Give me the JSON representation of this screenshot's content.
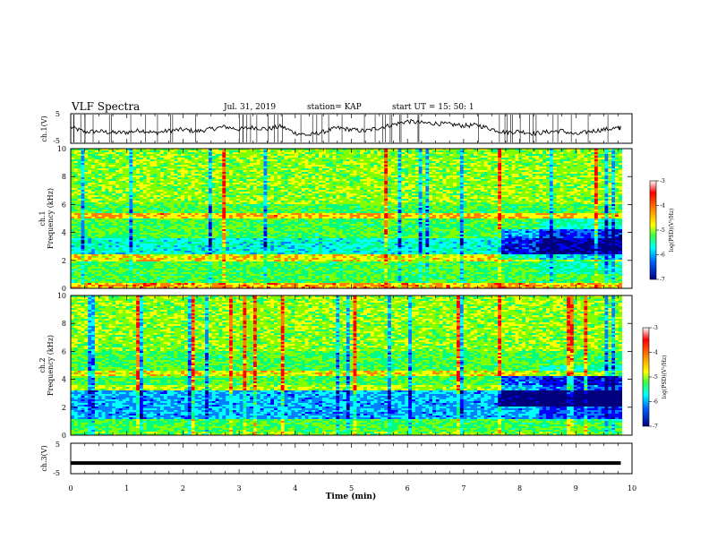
{
  "header": {
    "title": "VLF Spectra",
    "date": "Jul. 31, 2019",
    "station": "station= KAP",
    "start": "start  UT =  15: 50: 1"
  },
  "chart_data": [
    {
      "type": "line",
      "panel": "ch1-waveform",
      "ylabel": "ch.1(V)",
      "ylim": [
        -5,
        5
      ],
      "yticks": [
        "5",
        "-5"
      ],
      "xlim": [
        0,
        10
      ],
      "x": [
        0.0,
        0.25,
        0.5,
        0.75,
        1.0,
        1.25,
        1.5,
        1.75,
        2.0,
        2.25,
        2.5,
        2.75,
        3.0,
        3.25,
        3.5,
        3.75,
        4.0,
        4.25,
        4.5,
        4.75,
        5.0,
        5.25,
        5.5,
        5.75,
        6.0,
        6.25,
        6.5,
        6.75,
        7.0,
        7.25,
        7.5,
        7.75,
        8.0,
        8.25,
        8.5,
        8.75,
        9.0,
        9.25,
        9.5,
        9.75
      ],
      "values": [
        0.5,
        -1.2,
        -1.0,
        -1.5,
        -1.4,
        -0.6,
        -1.6,
        -0.8,
        -0.4,
        -1.0,
        -0.2,
        0.6,
        -0.3,
        0.4,
        -0.2,
        0.8,
        -1.6,
        -2.4,
        -1.2,
        0.2,
        -0.4,
        -0.9,
        0.3,
        1.4,
        2.6,
        2.0,
        1.8,
        1.5,
        1.0,
        1.2,
        -0.2,
        -1.4,
        -1.0,
        -1.8,
        -1.2,
        -0.8,
        -2.2,
        -1.0,
        -0.4,
        0.2
      ]
    },
    {
      "type": "heatmap",
      "panel": "ch1-spectrogram",
      "ylabel": "ch.1 Frequency (kHz)",
      "ylim": [
        0,
        10
      ],
      "yticks": [
        "0",
        "2",
        "4",
        "6",
        "8",
        "10"
      ],
      "xlim": [
        0,
        10
      ],
      "colorbar": {
        "label": "log(PSD)(V²/Hz)",
        "range": [
          -7,
          -3
        ],
        "ticks": [
          "-3",
          "-4",
          "-5",
          "-6",
          "-7"
        ]
      }
    },
    {
      "type": "heatmap",
      "panel": "ch2-spectrogram",
      "ylabel": "ch.2 Frequency (kHz)",
      "ylim": [
        0,
        10
      ],
      "yticks": [
        "0",
        "2",
        "4",
        "6",
        "8",
        "10"
      ],
      "xlim": [
        0,
        10
      ],
      "colorbar": {
        "label": "log(PSD)(V²/Hz)",
        "range": [
          -7,
          -3
        ],
        "ticks": [
          "-3",
          "-4",
          "-5",
          "-6",
          "-7"
        ]
      }
    },
    {
      "type": "line",
      "panel": "ch3-waveform",
      "ylabel": "ch.3(V)",
      "ylim": [
        -5,
        5
      ],
      "yticks": [
        "5",
        "-5"
      ],
      "xlim": [
        0,
        10
      ],
      "x": [
        0,
        9.8
      ],
      "values": [
        -1.5,
        -1.5
      ]
    }
  ],
  "xaxis": {
    "label": "Time (min)",
    "ticks": [
      "0",
      "1",
      "2",
      "3",
      "4",
      "5",
      "6",
      "7",
      "8",
      "9",
      "10"
    ]
  },
  "colors": {
    "colormap": [
      "#00007f",
      "#0000ff",
      "#0080ff",
      "#00ffff",
      "#00ff80",
      "#80ff00",
      "#ffff00",
      "#ff8000",
      "#ff0000",
      "#ffffff"
    ]
  }
}
